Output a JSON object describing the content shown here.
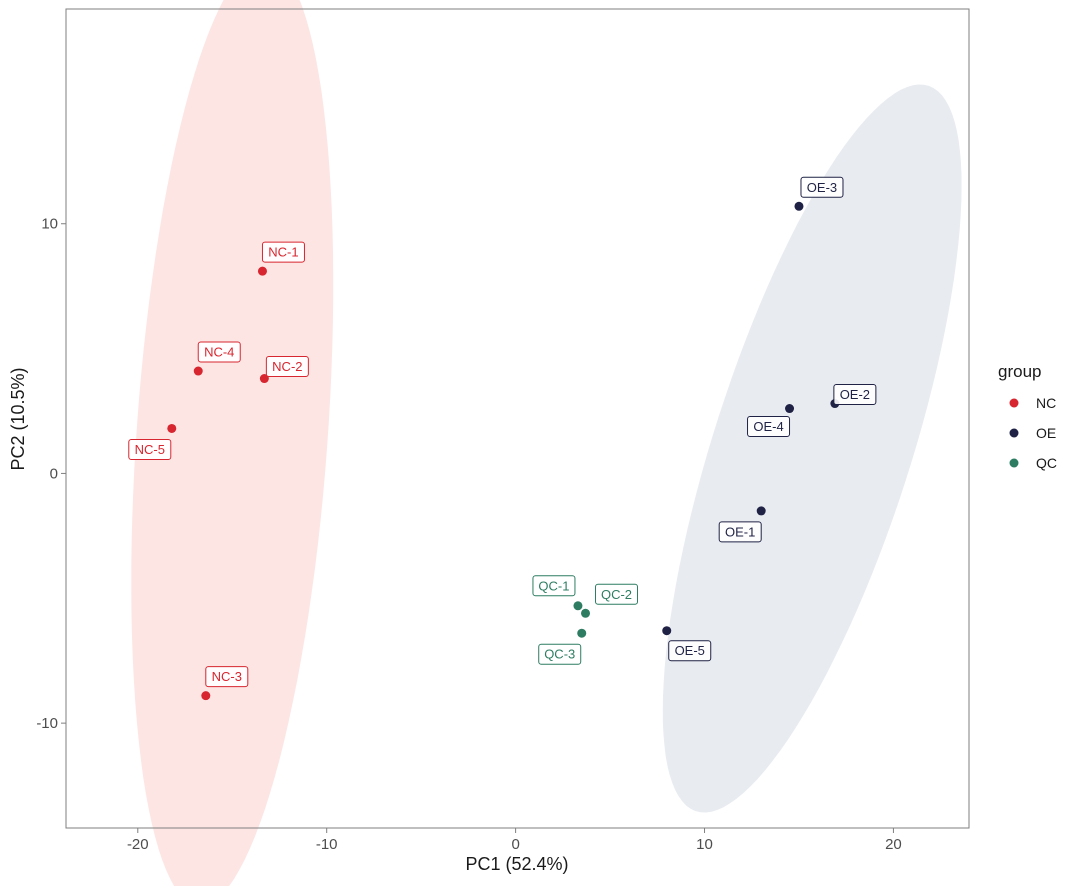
{
  "chart_data": {
    "type": "scatter",
    "title": "",
    "xlabel": "PC1 (52.4%)",
    "ylabel": "PC2 (10.5%)",
    "xlim": [
      -23.8,
      24.0
    ],
    "ylim": [
      -14.2,
      18.6
    ],
    "xticks": [
      -20,
      -10,
      0,
      10,
      20
    ],
    "xtick_labels": [
      "-20",
      "-10",
      "0",
      "10",
      "20"
    ],
    "yticks": [
      -10,
      0,
      10
    ],
    "ytick_labels": [
      "-10",
      "0",
      "10"
    ],
    "grid": false,
    "legend": {
      "title": "group",
      "position": "right",
      "entries": [
        "NC",
        "OE",
        "QC"
      ]
    },
    "series": [
      {
        "name": "NC",
        "color": "#d7262f",
        "fill": "#fde5e4",
        "ellipse": {
          "cx": -15.0,
          "cy": 1.6,
          "rx": 19.0,
          "ry": 5.05,
          "angle_deg": 84.5
        },
        "points": [
          {
            "label": "NC-1",
            "x": -13.4,
            "y": 8.1
          },
          {
            "label": "NC-2",
            "x": -13.3,
            "y": 3.8
          },
          {
            "label": "NC-3",
            "x": -16.4,
            "y": -8.9
          },
          {
            "label": "NC-4",
            "x": -16.8,
            "y": 4.1
          },
          {
            "label": "NC-5",
            "x": -18.2,
            "y": 1.8
          }
        ]
      },
      {
        "name": "OE",
        "color": "#1f2244",
        "fill": "#e8ebf0",
        "ellipse": {
          "cx": 15.7,
          "cy": 1.0,
          "rx": 15.8,
          "ry": 5.05,
          "angle_deg": 66.0
        },
        "points": [
          {
            "label": "OE-1",
            "x": 13.0,
            "y": -1.5
          },
          {
            "label": "OE-2",
            "x": 16.9,
            "y": 2.8
          },
          {
            "label": "OE-3",
            "x": 15.0,
            "y": 10.7
          },
          {
            "label": "OE-4",
            "x": 14.5,
            "y": 2.6
          },
          {
            "label": "OE-5",
            "x": 8.0,
            "y": -6.3
          }
        ]
      },
      {
        "name": "QC",
        "color": "#2e7d62",
        "fill": "none",
        "points": [
          {
            "label": "QC-1",
            "x": 3.3,
            "y": -5.3
          },
          {
            "label": "QC-2",
            "x": 3.7,
            "y": -5.6
          },
          {
            "label": "QC-3",
            "x": 3.5,
            "y": -6.4
          }
        ]
      }
    ]
  }
}
